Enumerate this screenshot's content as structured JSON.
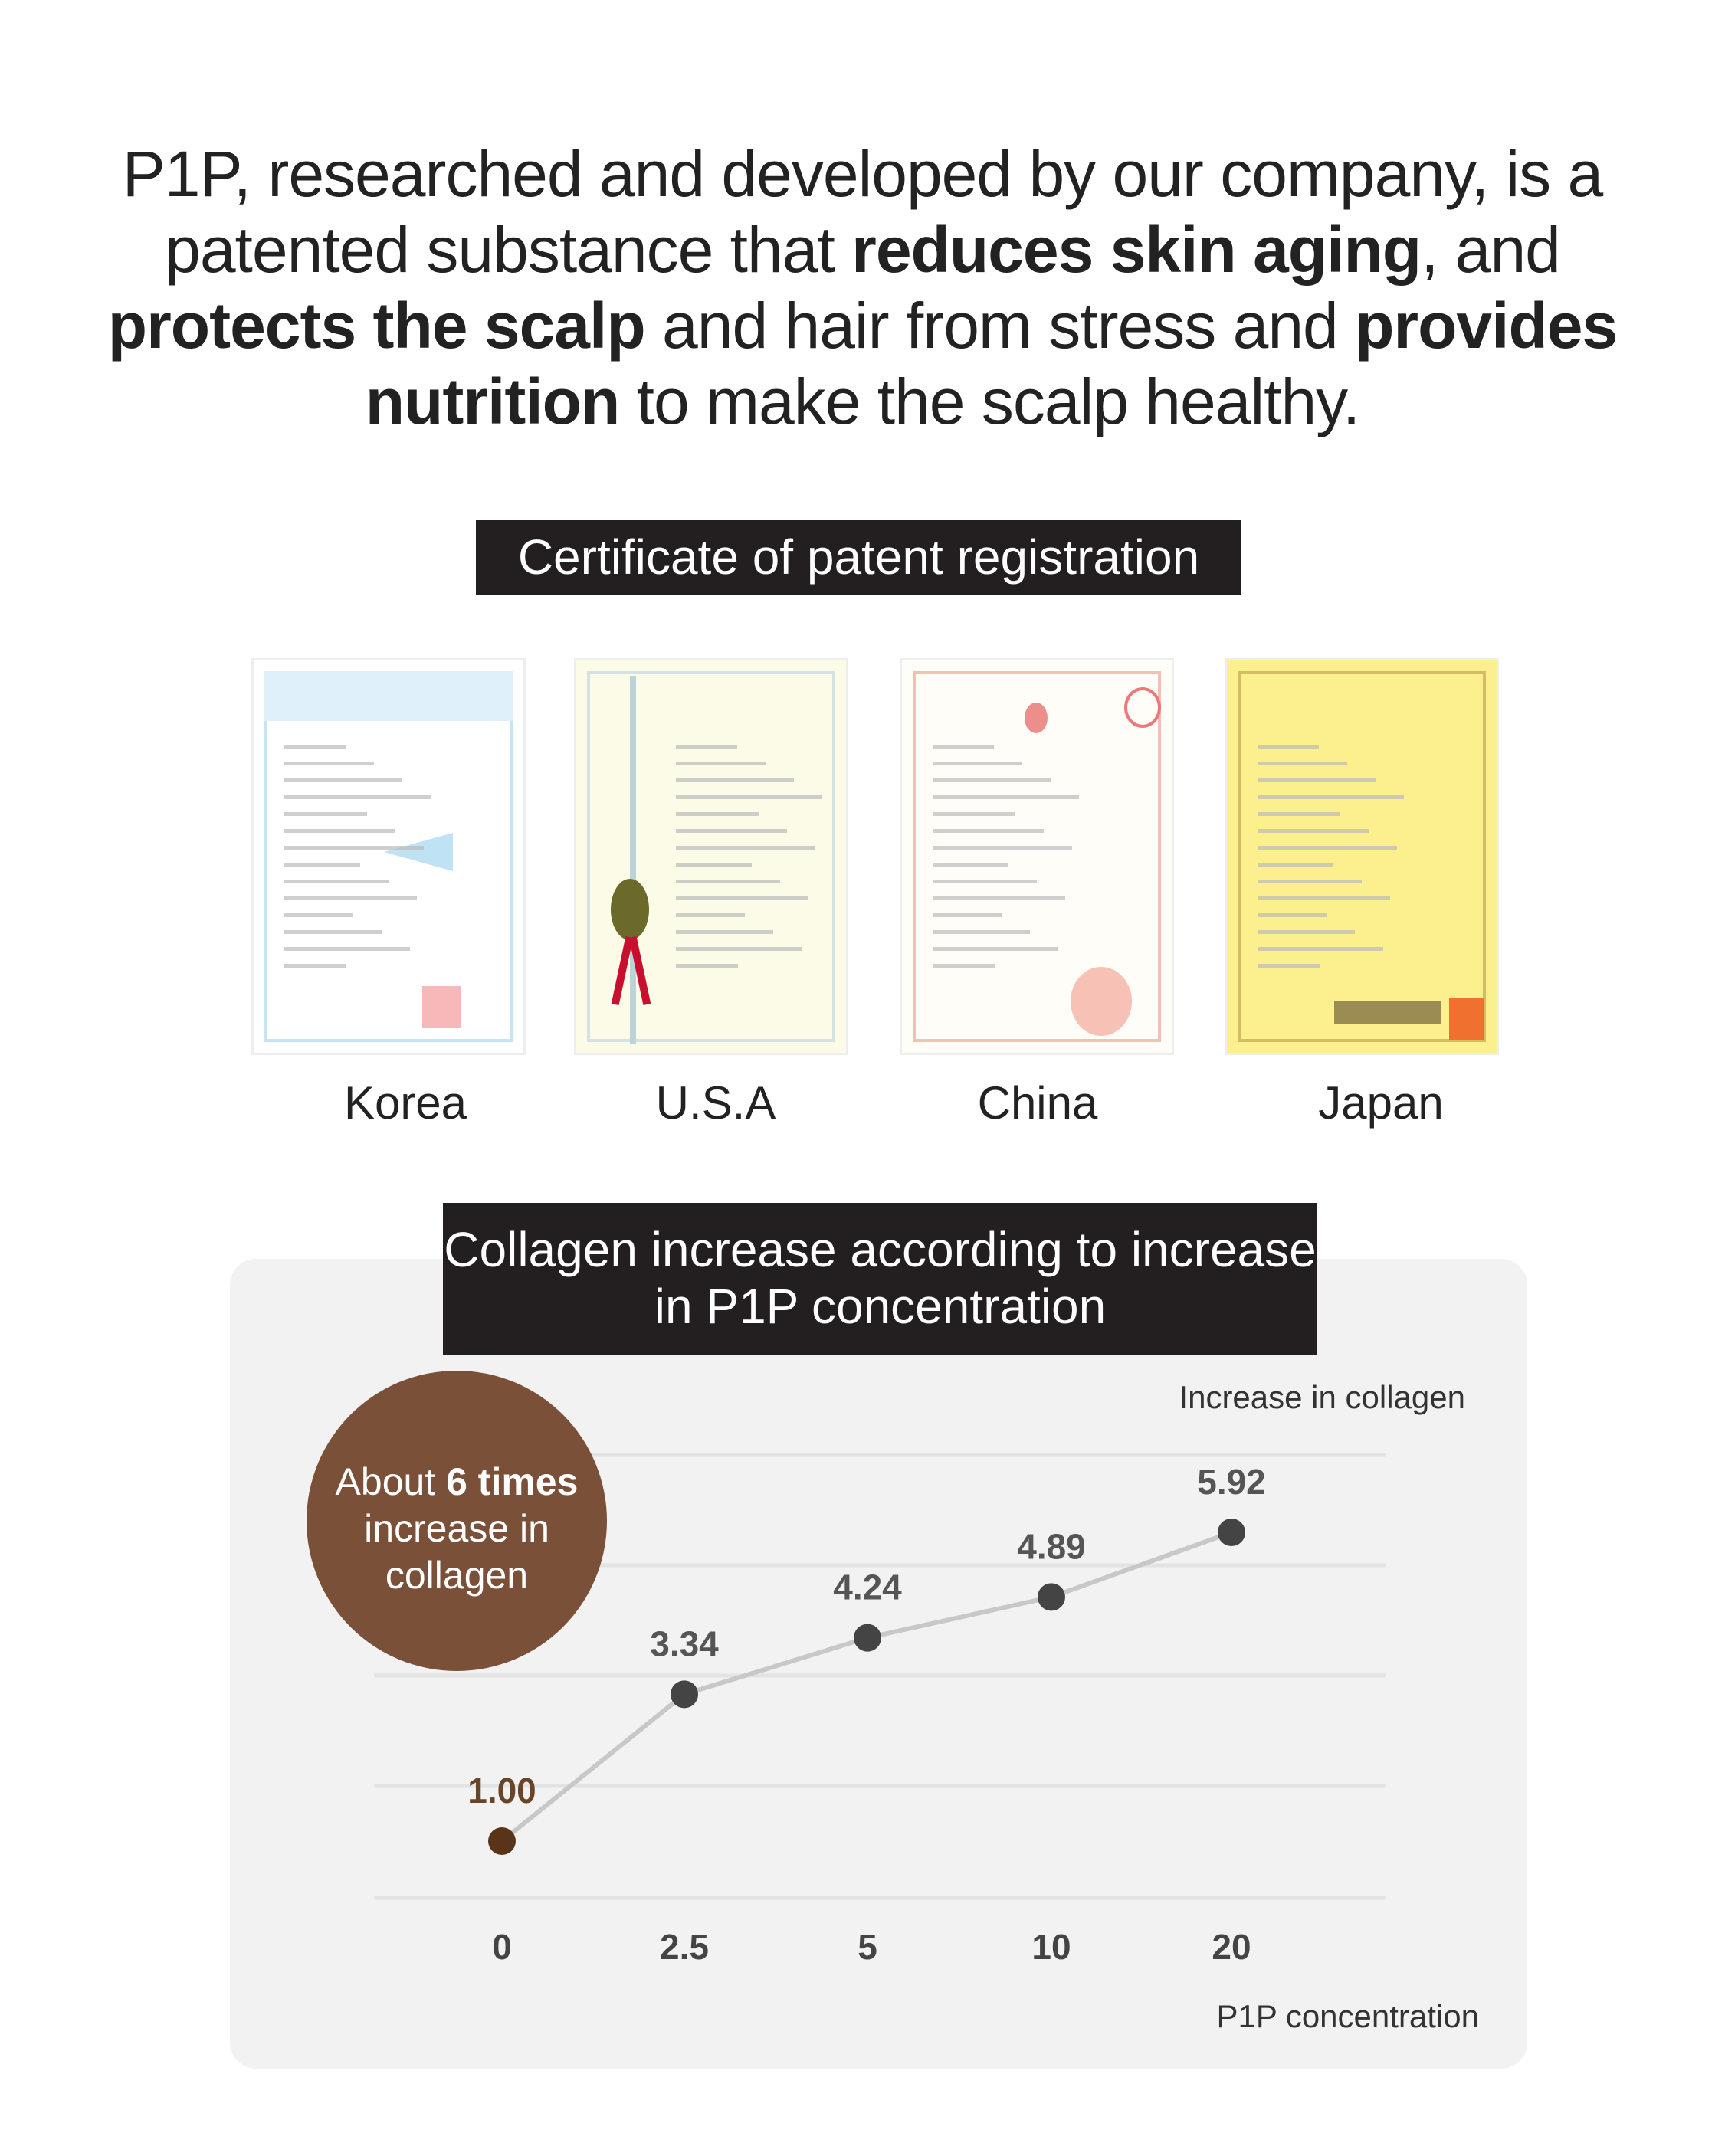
{
  "intro": {
    "segments": [
      {
        "text": "P1P, researched and developed by our company, is a patented substance that ",
        "bold": false
      },
      {
        "text": "reduces skin aging",
        "bold": true
      },
      {
        "text": ", and ",
        "bold": false
      },
      {
        "text": "protects the scalp",
        "bold": true
      },
      {
        "text": " and hair from stress and ",
        "bold": false
      },
      {
        "text": "provides nutrition",
        "bold": true
      },
      {
        "text": " to make the scalp healthy.",
        "bold": false
      }
    ]
  },
  "certificates": {
    "title": "Certificate of patent registration",
    "items": [
      {
        "country": "Korea",
        "paper_color": "#ffffff",
        "accent": "#9fd3ef"
      },
      {
        "country": "U.S.A",
        "paper_color": "#fbfbe8",
        "accent": "#b8d4dc"
      },
      {
        "country": "China",
        "paper_color": "#fffdf8",
        "accent": "#e89a8a"
      },
      {
        "country": "Japan",
        "paper_color": "#fbef8e",
        "accent": "#b99a4a"
      }
    ]
  },
  "chart_data": {
    "type": "line",
    "title": "Collagen increase according to increase in P1P concentration",
    "ylabel": "Increase in collagen",
    "xlabel": "P1P concentration",
    "categories": [
      "0",
      "2.5",
      "5",
      "10",
      "20"
    ],
    "values": [
      1.0,
      3.34,
      4.24,
      4.89,
      5.92
    ],
    "value_labels": [
      "1.00",
      "3.34",
      "4.24",
      "4.89",
      "5.92"
    ],
    "grid": true,
    "colors": {
      "line": "#c8c8c8",
      "point": "#444444",
      "first_point": "#5a3418",
      "background": "#f2f2f2"
    },
    "callout": {
      "pre": "About ",
      "bold": "6 times",
      "post": "increase in collagen",
      "color": "#7a5038"
    }
  }
}
